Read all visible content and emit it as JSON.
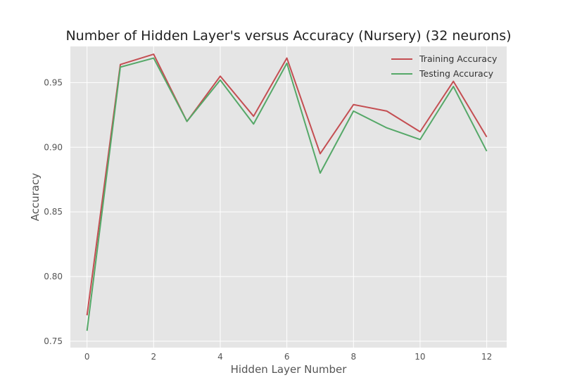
{
  "chart_data": {
    "type": "line",
    "title": "Number of Hidden Layer's versus Accuracy (Nursery) (32 neurons)",
    "xlabel": "Hidden Layer Number",
    "ylabel": "Accuracy",
    "x": [
      0,
      1,
      2,
      3,
      4,
      5,
      6,
      7,
      8,
      9,
      10,
      11,
      12
    ],
    "xlim": [
      -0.5,
      12.6
    ],
    "ylim": [
      0.745,
      0.978
    ],
    "xticks": [
      0,
      2,
      4,
      6,
      8,
      10,
      12
    ],
    "xtick_labels": [
      "0",
      "2",
      "4",
      "6",
      "8",
      "10",
      "12"
    ],
    "yticks": [
      0.75,
      0.8,
      0.85,
      0.9,
      0.95
    ],
    "ytick_labels": [
      "0.75",
      "0.80",
      "0.85",
      "0.90",
      "0.95"
    ],
    "grid": true,
    "legend_position": "top-right",
    "background_color": "#e5e5e5",
    "grid_color": "#ffffff",
    "series": [
      {
        "name": "Training Accuracy",
        "color": "#c44e52",
        "values": [
          0.77,
          0.964,
          0.972,
          0.92,
          0.955,
          0.924,
          0.969,
          0.895,
          0.933,
          0.928,
          0.912,
          0.951,
          0.908
        ]
      },
      {
        "name": "Testing Accuracy",
        "color": "#55a868",
        "values": [
          0.758,
          0.962,
          0.969,
          0.92,
          0.952,
          0.918,
          0.965,
          0.88,
          0.928,
          0.915,
          0.906,
          0.947,
          0.897
        ]
      }
    ]
  }
}
